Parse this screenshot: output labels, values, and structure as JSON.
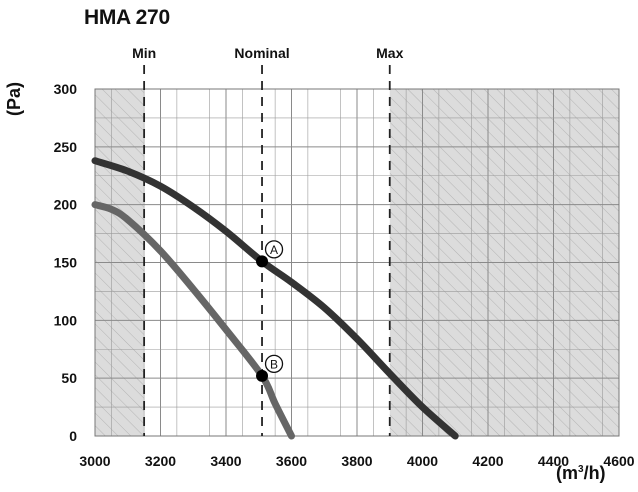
{
  "chart_data": {
    "type": "line",
    "title": "HMA 270",
    "ylabel": "(Pa)",
    "xlabel_main": "(m",
    "xlabel_sup": "3",
    "xlabel_tail": "/h)",
    "xlim": [
      3000,
      4600
    ],
    "ylim": [
      0,
      300
    ],
    "x_ticks": [
      "3000",
      "3200",
      "3400",
      "3600",
      "3800",
      "4000",
      "4200",
      "4400",
      "4600"
    ],
    "y_ticks": [
      "0",
      "50",
      "100",
      "150",
      "200",
      "250",
      "300"
    ],
    "grid": true,
    "reference_lines": [
      {
        "label": "Min",
        "x": 3150
      },
      {
        "label": "Nominal",
        "x": 3510
      },
      {
        "label": "Max",
        "x": 3900
      }
    ],
    "hatched_regions": [
      [
        3000,
        3150
      ],
      [
        3900,
        4600
      ]
    ],
    "series": [
      {
        "x": [
          3000,
          3100,
          3200,
          3300,
          3400,
          3510,
          3600,
          3700,
          3800,
          3900,
          4000,
          4100
        ],
        "values": [
          238,
          229,
          216,
          198,
          177,
          151,
          133,
          111,
          84,
          54,
          25,
          0
        ],
        "color": "#333333"
      },
      {
        "x": [
          3000,
          3050,
          3100,
          3200,
          3300,
          3400,
          3510,
          3550,
          3600
        ],
        "values": [
          200,
          196,
          187,
          160,
          127,
          92,
          52,
          28,
          0
        ],
        "color": "#666666"
      }
    ],
    "points": [
      {
        "label": "A",
        "x": 3510,
        "y": 151
      },
      {
        "label": "B",
        "x": 3510,
        "y": 52
      }
    ]
  }
}
